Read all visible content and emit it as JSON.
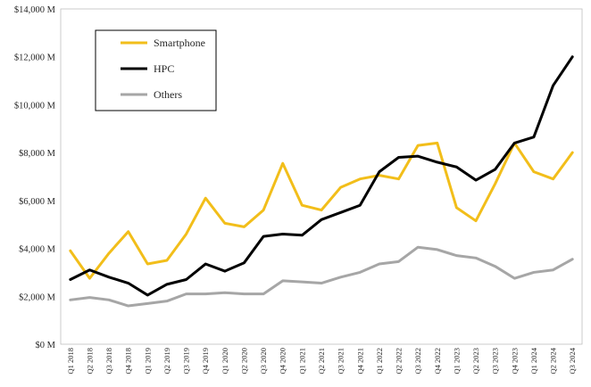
{
  "chart_data": {
    "type": "line",
    "title": "",
    "xlabel": "",
    "ylabel": "",
    "ylim": [
      0,
      14000
    ],
    "y_ticks": [
      {
        "value": 0,
        "label": "$0 M"
      },
      {
        "value": 2000,
        "label": "$2,000 M"
      },
      {
        "value": 4000,
        "label": "$4,000 M"
      },
      {
        "value": 6000,
        "label": "$6,000 M"
      },
      {
        "value": 8000,
        "label": "$8,000 M"
      },
      {
        "value": 10000,
        "label": "$10,000 M"
      },
      {
        "value": 12000,
        "label": "$12,000 M"
      },
      {
        "value": 14000,
        "label": "$14,000 M"
      }
    ],
    "grid": false,
    "legend_position": "top-left",
    "categories": [
      "Q1 2018",
      "Q2 2018",
      "Q3 2018",
      "Q4 2018",
      "Q1 2019",
      "Q2 2019",
      "Q3 2019",
      "Q4 2019",
      "Q1 2020",
      "Q2 2020",
      "Q3 2020",
      "Q4 2020",
      "Q1 2021",
      "Q2 2021",
      "Q3 2021",
      "Q4 2021",
      "Q1 2022",
      "Q2 2022",
      "Q3 2022",
      "Q4 2022",
      "Q1 2023",
      "Q2 2023",
      "Q3 2023",
      "Q4 2023",
      "Q1 2024",
      "Q2 2024",
      "Q3 2024"
    ],
    "series": [
      {
        "name": "Smartphone",
        "color": "#F2BE1A",
        "values": [
          3900,
          2750,
          3800,
          4700,
          3350,
          3500,
          4600,
          6100,
          5050,
          4900,
          5600,
          7550,
          5800,
          5600,
          6550,
          6900,
          7050,
          6900,
          8300,
          8400,
          5700,
          5150,
          6700,
          8400,
          7200,
          6900,
          8000
        ]
      },
      {
        "name": "HPC",
        "color": "#000000",
        "values": [
          2700,
          3100,
          2800,
          2550,
          2050,
          2500,
          2700,
          3350,
          3050,
          3400,
          4500,
          4600,
          4550,
          5200,
          5500,
          5800,
          7200,
          7800,
          7850,
          7600,
          7400,
          6850,
          7300,
          8400,
          8650,
          10800,
          12000
        ]
      },
      {
        "name": "Others",
        "color": "#A6A6A6",
        "values": [
          1850,
          1950,
          1850,
          1600,
          1700,
          1800,
          2100,
          2100,
          2150,
          2100,
          2100,
          2650,
          2600,
          2550,
          2800,
          3000,
          3350,
          3450,
          4050,
          3950,
          3700,
          3600,
          3250,
          2750,
          3000,
          3100,
          3550
        ]
      }
    ]
  }
}
